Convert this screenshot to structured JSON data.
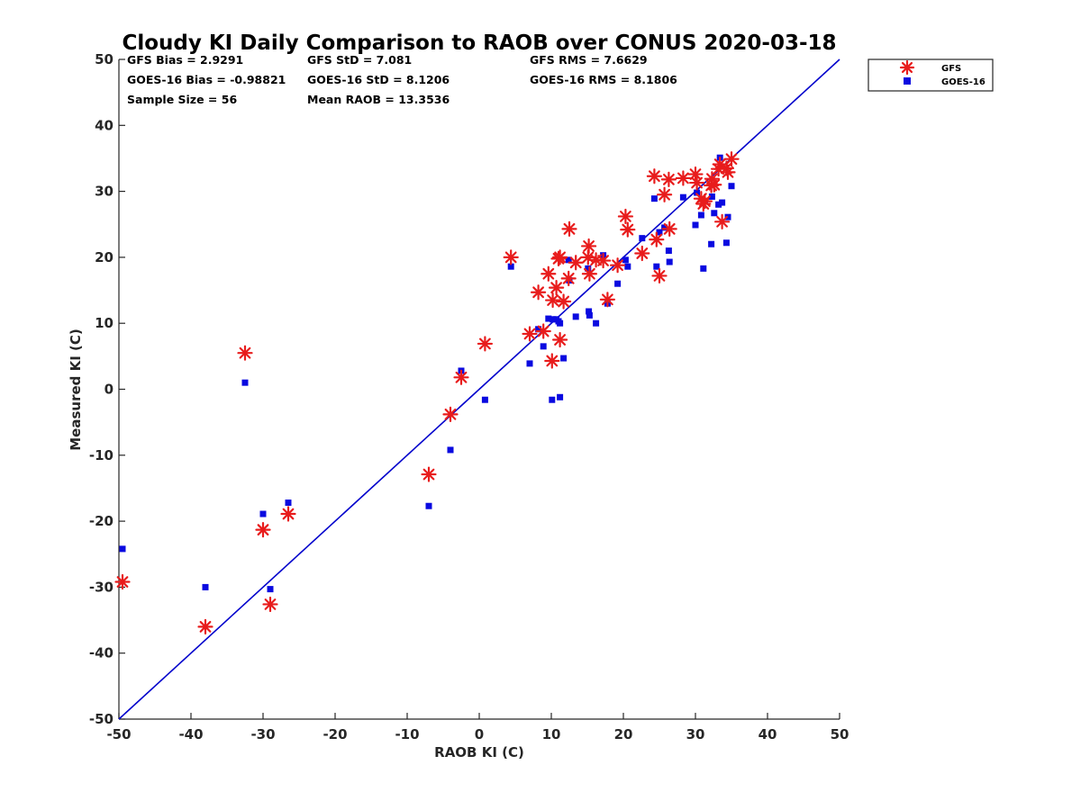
{
  "chart_data": {
    "type": "scatter",
    "title": "Cloudy KI Daily Comparison to RAOB over CONUS 2020-03-18",
    "xlabel": "RAOB KI (C)",
    "ylabel": "Measured KI (C)",
    "xlim": [
      -50,
      50
    ],
    "ylim": [
      -50,
      50
    ],
    "xticks": [
      "-50",
      "-40",
      "-30",
      "-20",
      "-10",
      "0",
      "10",
      "20",
      "30",
      "40",
      "50"
    ],
    "yticks": [
      "50",
      "40",
      "30",
      "20",
      "10",
      "0",
      "-10",
      "-20",
      "-30",
      "-40",
      "-50"
    ],
    "grid": false,
    "legend_position": "top-right, outside plot",
    "reference_line": {
      "type": "one-to-one",
      "from": [
        -50,
        -50
      ],
      "to": [
        50,
        50
      ],
      "color": "#0000cc"
    },
    "stats": [
      "GFS Bias = 2.9291",
      "GFS StD = 7.081",
      "GFS RMS = 7.6629",
      "GOES-16 Bias = -0.98821",
      "GOES-16 StD = 8.1206",
      "GOES-16 RMS = 8.1806",
      "Sample Size = 56",
      "Mean RAOB = 13.3536"
    ],
    "series": [
      {
        "name": "GFS",
        "marker": "asterisk",
        "color": "#e81c1c",
        "points": [
          [
            -49.5,
            -29.2
          ],
          [
            -38.0,
            -36.0
          ],
          [
            -32.5,
            5.5
          ],
          [
            -30.0,
            -21.3
          ],
          [
            -29.0,
            -32.6
          ],
          [
            -26.5,
            -18.9
          ],
          [
            -7.0,
            -12.9
          ],
          [
            -4.0,
            -3.8
          ],
          [
            -2.5,
            1.8
          ],
          [
            0.8,
            6.9
          ],
          [
            4.4,
            20.0
          ],
          [
            7.0,
            8.4
          ],
          [
            8.2,
            14.7
          ],
          [
            8.9,
            8.8
          ],
          [
            9.6,
            17.5
          ],
          [
            10.1,
            4.3
          ],
          [
            10.2,
            13.5
          ],
          [
            10.7,
            15.4
          ],
          [
            11.0,
            19.8
          ],
          [
            11.2,
            20.0
          ],
          [
            11.2,
            7.5
          ],
          [
            11.7,
            13.3
          ],
          [
            12.4,
            16.8
          ],
          [
            12.5,
            24.3
          ],
          [
            13.4,
            19.2
          ],
          [
            15.1,
            20.0
          ],
          [
            15.2,
            21.7
          ],
          [
            15.3,
            17.5
          ],
          [
            16.2,
            19.6
          ],
          [
            17.2,
            19.5
          ],
          [
            17.8,
            13.6
          ],
          [
            19.2,
            18.8
          ],
          [
            20.3,
            26.2
          ],
          [
            20.6,
            24.2
          ],
          [
            22.6,
            20.6
          ],
          [
            24.3,
            32.3
          ],
          [
            24.6,
            22.7
          ],
          [
            25.0,
            17.2
          ],
          [
            25.7,
            29.5
          ],
          [
            26.3,
            31.8
          ],
          [
            26.4,
            24.3
          ],
          [
            28.3,
            32.0
          ],
          [
            30.0,
            32.6
          ],
          [
            30.2,
            31.3
          ],
          [
            30.8,
            28.9
          ],
          [
            31.1,
            28.1
          ],
          [
            31.3,
            28.5
          ],
          [
            32.2,
            30.9
          ],
          [
            32.3,
            31.9
          ],
          [
            32.6,
            31.0
          ],
          [
            33.2,
            33.4
          ],
          [
            33.4,
            34.1
          ],
          [
            33.7,
            25.4
          ],
          [
            34.3,
            33.5
          ],
          [
            34.5,
            32.9
          ],
          [
            35.0,
            34.9
          ]
        ]
      },
      {
        "name": "GOES-16",
        "marker": "square",
        "color": "#0a0ae0",
        "points": [
          [
            -49.5,
            -24.2
          ],
          [
            -38.0,
            -30.0
          ],
          [
            -32.5,
            1.0
          ],
          [
            -30.0,
            -18.9
          ],
          [
            -29.0,
            -30.3
          ],
          [
            -26.5,
            -17.2
          ],
          [
            -7.0,
            -17.7
          ],
          [
            -4.0,
            -9.2
          ],
          [
            -2.5,
            2.8
          ],
          [
            0.8,
            -1.6
          ],
          [
            4.4,
            18.6
          ],
          [
            7.0,
            3.9
          ],
          [
            8.2,
            9.1
          ],
          [
            8.9,
            6.5
          ],
          [
            9.6,
            10.7
          ],
          [
            10.1,
            -1.6
          ],
          [
            10.2,
            10.6
          ],
          [
            10.7,
            10.6
          ],
          [
            11.0,
            10.3
          ],
          [
            11.2,
            10.0
          ],
          [
            11.2,
            -1.2
          ],
          [
            11.7,
            4.7
          ],
          [
            12.4,
            19.6
          ],
          [
            12.5,
            16.5
          ],
          [
            13.4,
            11.0
          ],
          [
            15.1,
            18.3
          ],
          [
            15.2,
            11.8
          ],
          [
            15.3,
            11.2
          ],
          [
            16.2,
            10.0
          ],
          [
            17.2,
            20.3
          ],
          [
            17.8,
            13.0
          ],
          [
            19.2,
            16.0
          ],
          [
            20.3,
            19.6
          ],
          [
            20.6,
            18.6
          ],
          [
            22.6,
            22.9
          ],
          [
            24.3,
            28.9
          ],
          [
            24.6,
            18.6
          ],
          [
            25.0,
            23.8
          ],
          [
            25.7,
            24.5
          ],
          [
            26.3,
            21.0
          ],
          [
            26.4,
            19.3
          ],
          [
            28.3,
            29.1
          ],
          [
            30.0,
            24.9
          ],
          [
            30.2,
            29.8
          ],
          [
            30.8,
            26.4
          ],
          [
            31.1,
            18.3
          ],
          [
            31.3,
            28.5
          ],
          [
            32.2,
            22.0
          ],
          [
            32.3,
            29.2
          ],
          [
            32.6,
            26.7
          ],
          [
            33.2,
            28.0
          ],
          [
            33.4,
            35.1
          ],
          [
            33.7,
            28.3
          ],
          [
            34.3,
            22.2
          ],
          [
            34.5,
            26.1
          ],
          [
            35.0,
            30.8
          ]
        ]
      }
    ]
  }
}
